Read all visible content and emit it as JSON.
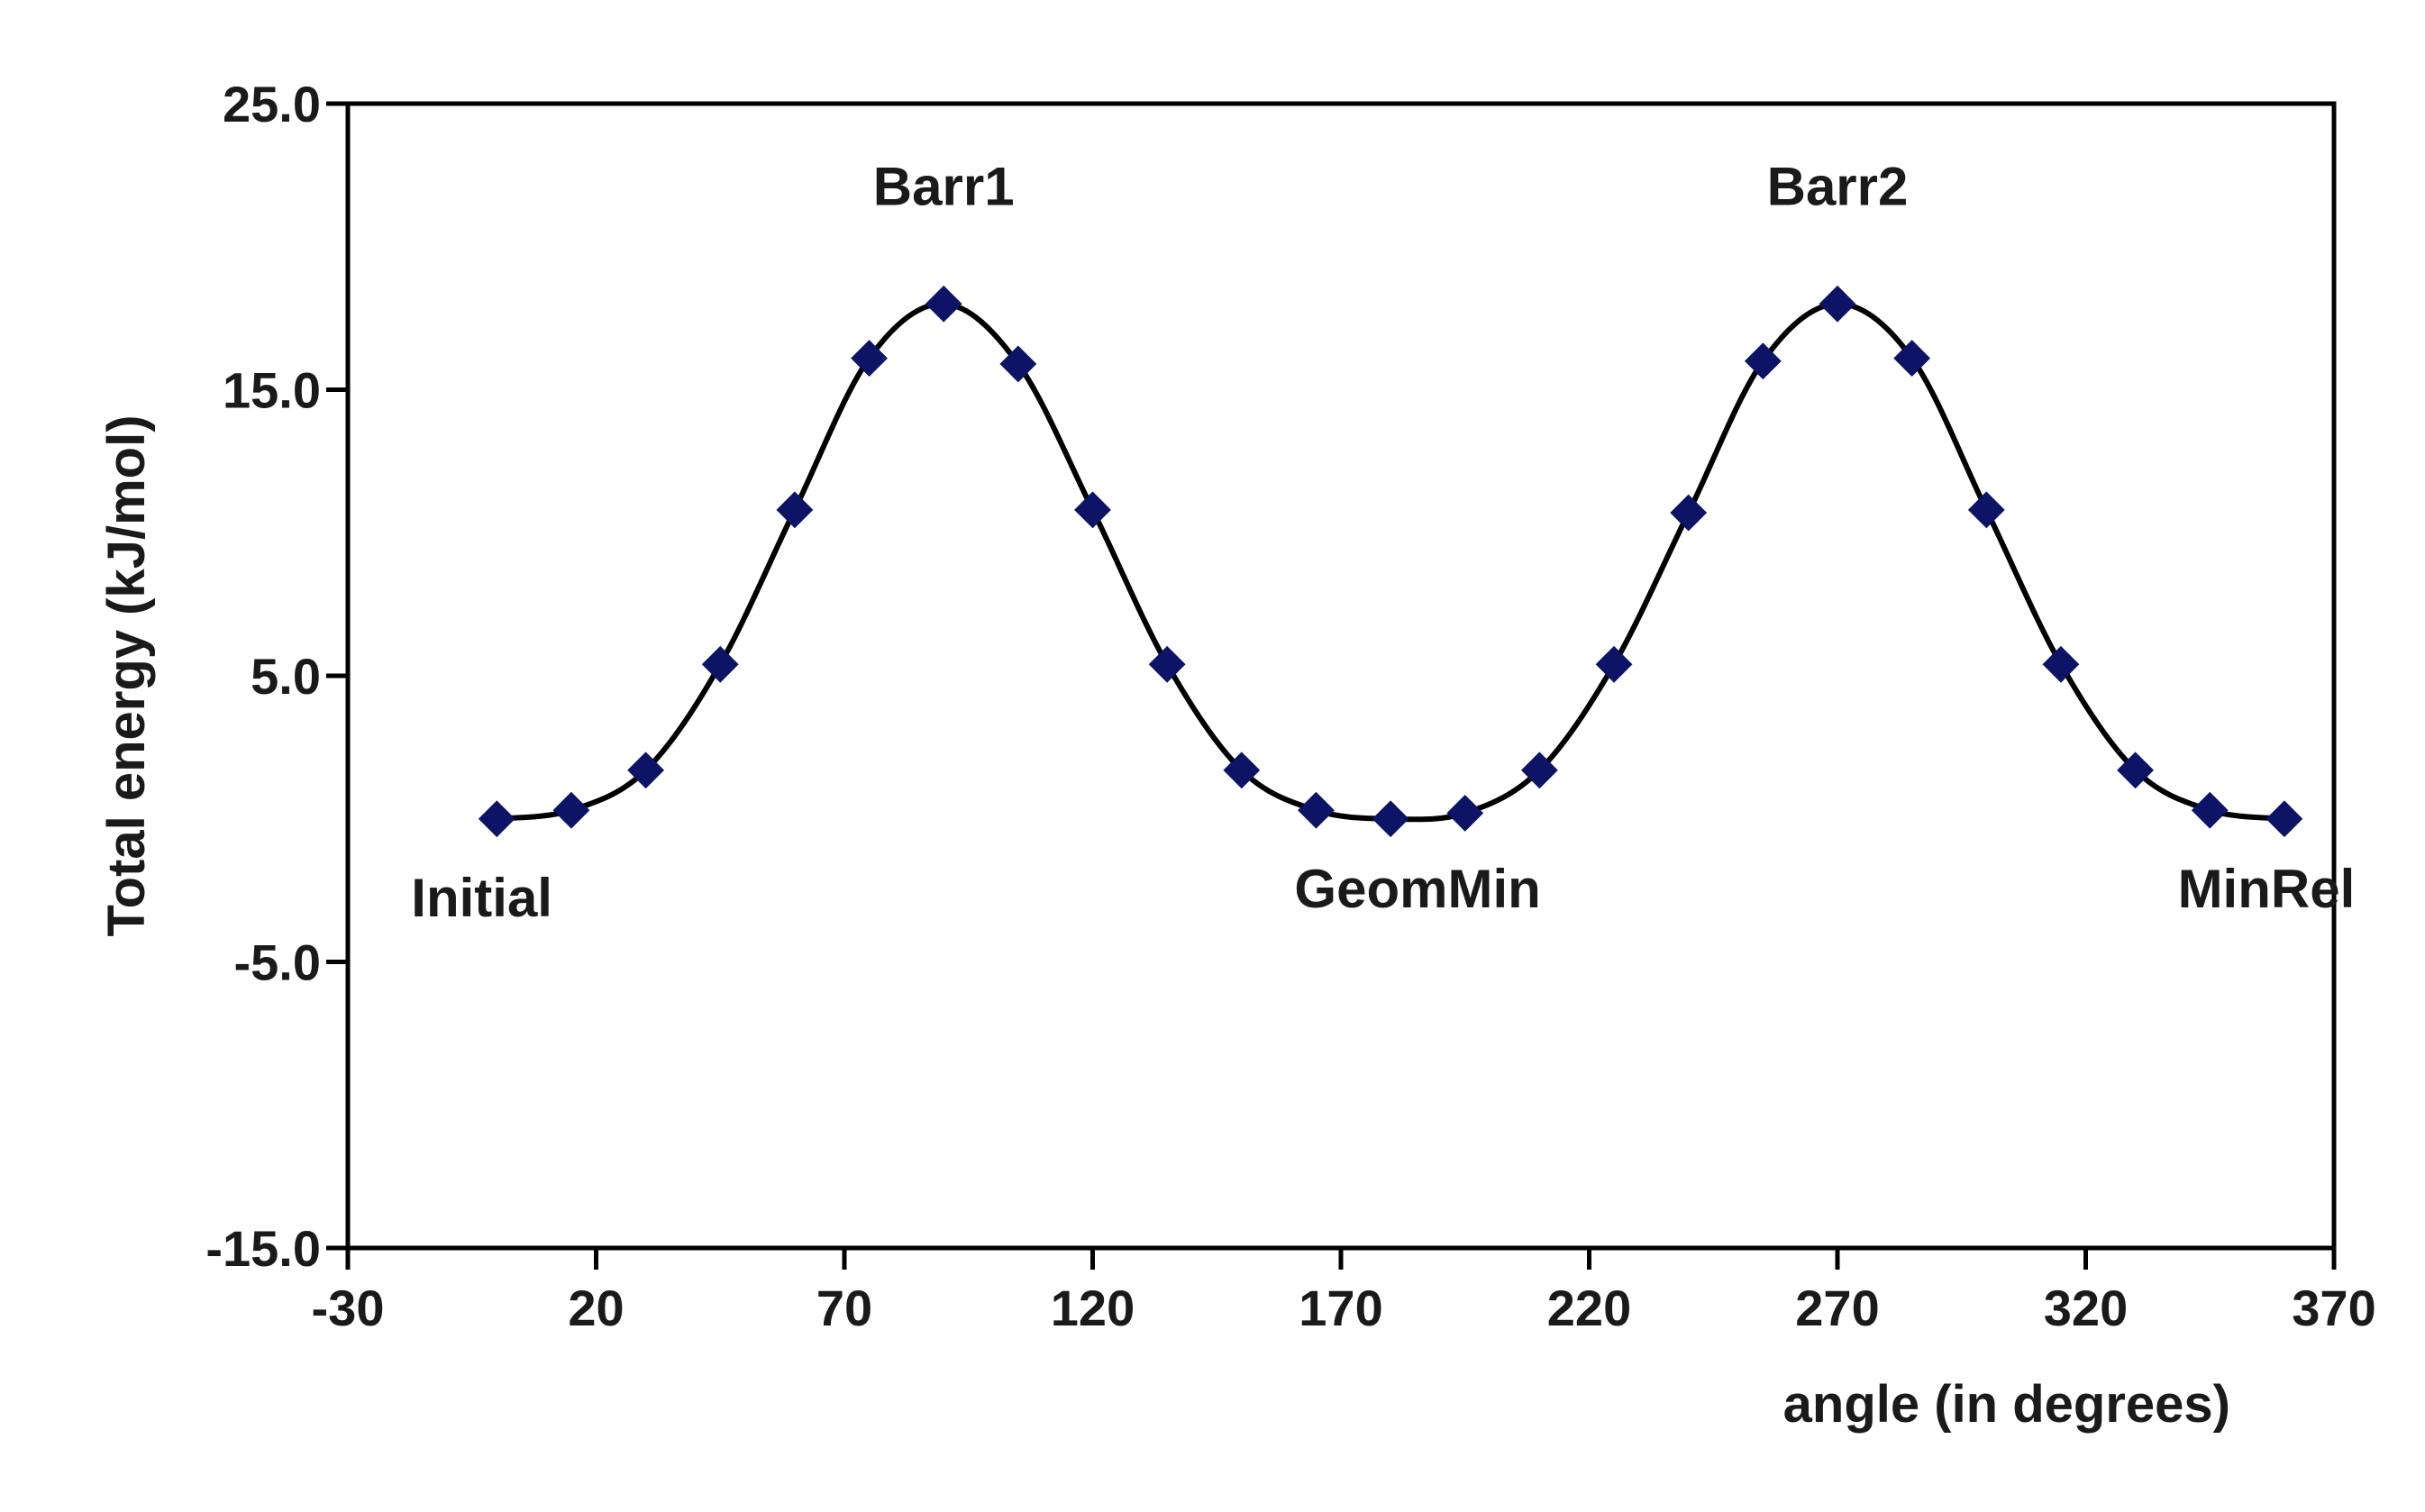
{
  "chart_data": {
    "type": "scatter",
    "title": "",
    "xlabel": "angle (in degrees)",
    "ylabel": "Total energy (kJ/mol)",
    "xlim": [
      -30,
      370
    ],
    "ylim": [
      -15,
      25
    ],
    "x_ticks": [
      -30,
      20,
      70,
      120,
      170,
      220,
      270,
      320,
      370
    ],
    "x_tick_labels": [
      "-30",
      "20",
      "70",
      "120",
      "170",
      "220",
      "270",
      "320",
      "370"
    ],
    "y_ticks": [
      -15,
      -5,
      5,
      15,
      25
    ],
    "y_tick_labels": [
      "-15.0",
      "-5.0",
      "5.0",
      "15.0",
      "25.0"
    ],
    "grid": false,
    "legend": "none",
    "series": [
      {
        "x": [
          0,
          15,
          30,
          45,
          60,
          75,
          90,
          105,
          120,
          135,
          150,
          165,
          180,
          195,
          210,
          225,
          240,
          255,
          270,
          285,
          300,
          315,
          330,
          345,
          360
        ],
        "y": [
          0.0,
          0.3,
          1.7,
          5.4,
          10.8,
          16.1,
          18.0,
          15.9,
          10.8,
          5.4,
          1.7,
          0.3,
          0.0,
          0.2,
          1.7,
          5.4,
          10.7,
          16.0,
          18.0,
          16.1,
          10.8,
          5.4,
          1.7,
          0.3,
          0.0
        ],
        "marker": "diamond",
        "marker_color": "#0d1466",
        "line_color": "#000000",
        "smoothed_line": true
      }
    ],
    "annotations": [
      {
        "text": "Barr1",
        "x": 90,
        "y": 18.0
      },
      {
        "text": "Barr2",
        "x": 270,
        "y": 18.0
      },
      {
        "text": "Initial",
        "x": 0,
        "y": 0.0
      },
      {
        "text": "GeomMin",
        "x": 180,
        "y": 0.0
      },
      {
        "text": "MinRel",
        "x": 360,
        "y": 0.0
      }
    ]
  }
}
